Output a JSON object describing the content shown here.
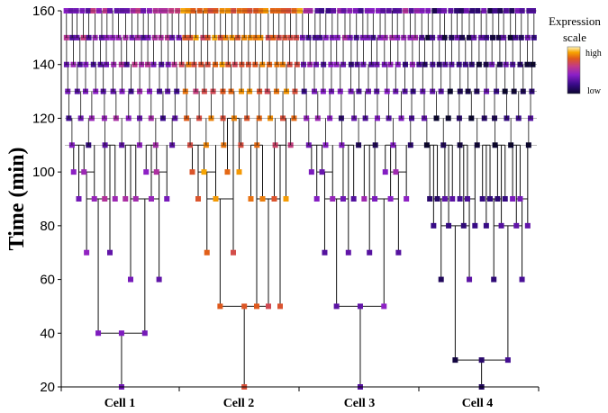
{
  "chart_data": {
    "type": "lineage-tree",
    "title": "",
    "ylabel": "Time (min)",
    "xlabel": "",
    "ylim": [
      20,
      160
    ],
    "yticks": [
      20,
      40,
      60,
      80,
      100,
      120,
      140,
      160
    ],
    "categories": [
      "Cell 1",
      "Cell 2",
      "Cell 3",
      "Cell 4"
    ],
    "legend": {
      "title_line1": "Expression",
      "title_line2": "scale",
      "high_label": "high",
      "low_label": "low",
      "placement": "top-right"
    },
    "colormap": [
      "#0a0530",
      "#3a0b8a",
      "#8a1fc8",
      "#c23a8a",
      "#e05a1a",
      "#f7a300",
      "#fff0a0"
    ],
    "dense_division_times": [
      110,
      120,
      130,
      140,
      150,
      160
    ],
    "trees": [
      {
        "name": "Cell 1",
        "expression": 0.28,
        "root": {
          "t": 20,
          "children": [
            {
              "t": 40,
              "children": [
                {
                  "t": 70,
                  "children": [
                    {
                      "t": 90,
                      "children": [
                        {
                          "t": 100,
                          "children": [
                            {
                              "t": 110,
                              "children": []
                            },
                            {
                              "t": 110,
                              "children": []
                            }
                          ]
                        },
                        {
                          "t": 110,
                          "children": []
                        }
                      ]
                    },
                    {
                      "t": 90,
                      "children": [
                        {
                          "t": 110,
                          "children": []
                        },
                        {
                          "t": 110,
                          "children": []
                        }
                      ]
                    }
                  ]
                },
                {
                  "t": 60,
                  "children": [
                    {
                      "t": 90,
                      "children": [
                        {
                          "t": 110,
                          "children": []
                        },
                        {
                          "t": 110,
                          "children": []
                        }
                      ]
                    },
                    {
                      "t": 90,
                      "children": [
                        {
                          "t": 100,
                          "children": [
                            {
                              "t": 110,
                              "children": []
                            },
                            {
                              "t": 110,
                              "children": []
                            }
                          ]
                        },
                        {
                          "t": 110,
                          "children": []
                        }
                      ]
                    }
                  ]
                }
              ]
            }
          ]
        }
      },
      {
        "name": "Cell 2",
        "expression": 0.62,
        "root": {
          "t": 20,
          "children": [
            {
              "t": 50,
              "children": [
                {
                  "t": 70,
                  "children": [
                    {
                      "t": 90,
                      "children": [
                        {
                          "t": 100,
                          "children": [
                            {
                              "t": 110,
                              "children": []
                            },
                            {
                              "t": 110,
                              "children": []
                            }
                          ]
                        },
                        {
                          "t": 110,
                          "children": []
                        }
                      ]
                    },
                    {
                      "t": 100,
                      "children": [
                        {
                          "t": 120,
                          "children": []
                        },
                        {
                          "t": 120,
                          "children": []
                        }
                      ]
                    }
                  ]
                },
                {
                  "t": 50,
                  "children": [
                    {
                      "t": 90,
                      "children": [
                        {
                          "t": 110,
                          "children": []
                        },
                        {
                          "t": 110,
                          "children": []
                        }
                      ]
                    },
                    {
                      "t": 90,
                      "children": [
                        {
                          "t": 110,
                          "children": []
                        },
                        {
                          "t": 120,
                          "children": []
                        }
                      ]
                    }
                  ]
                }
              ]
            }
          ]
        }
      },
      {
        "name": "Cell 3",
        "expression": 0.22,
        "root": {
          "t": 20,
          "children": [
            {
              "t": 50,
              "children": [
                {
                  "t": 70,
                  "children": [
                    {
                      "t": 90,
                      "children": [
                        {
                          "t": 100,
                          "children": [
                            {
                              "t": 110,
                              "children": []
                            },
                            {
                              "t": 110,
                              "children": []
                            }
                          ]
                        },
                        {
                          "t": 110,
                          "children": []
                        }
                      ]
                    },
                    {
                      "t": 90,
                      "children": [
                        {
                          "t": 110,
                          "children": []
                        },
                        {
                          "t": 110,
                          "children": []
                        }
                      ]
                    }
                  ]
                },
                {
                  "t": 70,
                  "children": [
                    {
                      "t": 90,
                      "children": [
                        {
                          "t": 110,
                          "children": []
                        },
                        {
                          "t": 110,
                          "children": []
                        }
                      ]
                    },
                    {
                      "t": 90,
                      "children": [
                        {
                          "t": 100,
                          "children": [
                            {
                              "t": 110,
                              "children": []
                            },
                            {
                              "t": 110,
                              "children": []
                            }
                          ]
                        },
                        {
                          "t": 110,
                          "children": []
                        }
                      ]
                    }
                  ]
                }
              ]
            }
          ]
        }
      },
      {
        "name": "Cell 4",
        "expression": 0.08,
        "root": {
          "t": 20,
          "children": [
            {
              "t": 30,
              "children": [
                {
                  "t": 60,
                  "children": [
                    {
                      "t": 80,
                      "children": [
                        {
                          "t": 90,
                          "children": [
                            {
                              "t": 110,
                              "children": []
                            },
                            {
                              "t": 110,
                              "children": []
                            }
                          ]
                        },
                        {
                          "t": 90,
                          "children": [
                            {
                              "t": 110,
                              "children": []
                            },
                            {
                              "t": 110,
                              "children": []
                            }
                          ]
                        }
                      ]
                    },
                    {
                      "t": 80,
                      "children": [
                        {
                          "t": 90,
                          "children": [
                            {
                              "t": 110,
                              "children": []
                            },
                            {
                              "t": 110,
                              "children": []
                            }
                          ]
                        },
                        {
                          "t": 110,
                          "children": []
                        }
                      ]
                    }
                  ]
                },
                {
                  "t": 60,
                  "children": [
                    {
                      "t": 80,
                      "children": [
                        {
                          "t": 90,
                          "children": [
                            {
                              "t": 110,
                              "children": []
                            },
                            {
                              "t": 110,
                              "children": []
                            }
                          ]
                        },
                        {
                          "t": 90,
                          "children": [
                            {
                              "t": 110,
                              "children": []
                            },
                            {
                              "t": 110,
                              "children": []
                            }
                          ]
                        }
                      ]
                    },
                    {
                      "t": 80,
                      "children": [
                        {
                          "t": 90,
                          "children": [
                            {
                              "t": 110,
                              "children": []
                            },
                            {
                              "t": 110,
                              "children": []
                            }
                          ]
                        },
                        {
                          "t": 110,
                          "children": []
                        }
                      ]
                    }
                  ]
                }
              ]
            }
          ]
        }
      }
    ]
  }
}
